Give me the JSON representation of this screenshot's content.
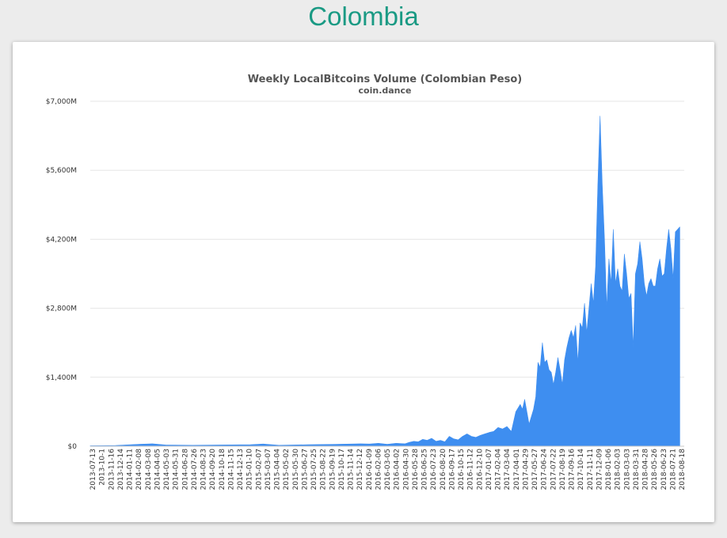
{
  "header": {
    "title": "Colombia"
  },
  "colors": {
    "title": "#1a9a84",
    "area": "#3e8ef0",
    "grid": "#e6e6e6"
  },
  "chart_data": {
    "type": "area",
    "title": "Weekly LocalBitcoins Volume (Colombian Peso)",
    "subtitle": "coin.dance",
    "ylim": [
      0,
      7000
    ],
    "yticks": [
      0,
      1400,
      2800,
      4200,
      5600,
      7000
    ],
    "ytick_labels": [
      "$0",
      "$1,400M",
      "$2,800M",
      "$4,200M",
      "$5,600M",
      "$7,000M"
    ],
    "grid": true,
    "x_start": "2013-07-13",
    "x_end": "2018-09-01",
    "xtick_labels": [
      "2013-07-13",
      "2013-10-1",
      "2013-11-16",
      "2013-12-14",
      "2014-01-11",
      "2014-02-08",
      "2014-03-08",
      "2014-04-05",
      "2014-05-03",
      "2014-05-31",
      "2014-06-28",
      "2014-07-26",
      "2014-08-23",
      "2014-09-20",
      "2014-10-18",
      "2014-11-15",
      "2014-12-13",
      "2015-01-10",
      "2015-02-07",
      "2015-03-07",
      "2015-04-04",
      "2015-05-02",
      "2015-05-30",
      "2015-06-27",
      "2015-07-25",
      "2015-08-22",
      "2015-09-19",
      "2015-10-17",
      "2015-11-14",
      "2015-12-12",
      "2016-01-09",
      "2016-02-06",
      "2016-03-05",
      "2016-04-02",
      "2016-04-30",
      "2016-05-28",
      "2016-06-25",
      "2016-07-23",
      "2016-08-20",
      "2016-09-17",
      "2016-10-15",
      "2016-11-12",
      "2016-12-10",
      "2017-01-07",
      "2017-02-04",
      "2017-03-04",
      "2017-04-01",
      "2017-04-29",
      "2017-05-27",
      "2017-06-24",
      "2017-07-22",
      "2017-08-19",
      "2017-09-16",
      "2017-10-14",
      "2017-11-11",
      "2017-12-09",
      "2018-01-06",
      "2018-02-03",
      "2018-03-03",
      "2018-03-31",
      "2018-04-28",
      "2018-05-26",
      "2018-06-23",
      "2018-07-21",
      "2018-08-18"
    ],
    "series": [
      {
        "points": [
          [
            "2013-07-13",
            10
          ],
          [
            "2013-10-01",
            15
          ],
          [
            "2013-12-14",
            40
          ],
          [
            "2014-01-25",
            50
          ],
          [
            "2014-03-08",
            25
          ],
          [
            "2014-06-01",
            20
          ],
          [
            "2014-09-01",
            25
          ],
          [
            "2014-12-01",
            30
          ],
          [
            "2015-01-10",
            45
          ],
          [
            "2015-03-01",
            20
          ],
          [
            "2015-06-01",
            30
          ],
          [
            "2015-09-01",
            40
          ],
          [
            "2015-11-14",
            50
          ],
          [
            "2015-12-12",
            45
          ],
          [
            "2016-01-09",
            60
          ],
          [
            "2016-02-06",
            40
          ],
          [
            "2016-03-05",
            60
          ],
          [
            "2016-04-02",
            50
          ],
          [
            "2016-04-16",
            80
          ],
          [
            "2016-04-30",
            100
          ],
          [
            "2016-05-14",
            90
          ],
          [
            "2016-05-28",
            140
          ],
          [
            "2016-06-11",
            120
          ],
          [
            "2016-06-25",
            160
          ],
          [
            "2016-07-09",
            100
          ],
          [
            "2016-07-23",
            120
          ],
          [
            "2016-08-06",
            90
          ],
          [
            "2016-08-20",
            200
          ],
          [
            "2016-09-03",
            150
          ],
          [
            "2016-09-17",
            130
          ],
          [
            "2016-10-01",
            200
          ],
          [
            "2016-10-15",
            250
          ],
          [
            "2016-10-29",
            200
          ],
          [
            "2016-11-12",
            180
          ],
          [
            "2016-11-26",
            220
          ],
          [
            "2016-12-10",
            250
          ],
          [
            "2016-12-24",
            280
          ],
          [
            "2017-01-07",
            300
          ],
          [
            "2017-01-21",
            380
          ],
          [
            "2017-02-04",
            350
          ],
          [
            "2017-02-18",
            400
          ],
          [
            "2017-03-04",
            300
          ],
          [
            "2017-03-18",
            700
          ],
          [
            "2017-04-01",
            850
          ],
          [
            "2017-04-08",
            750
          ],
          [
            "2017-04-15",
            950
          ],
          [
            "2017-04-29",
            450
          ],
          [
            "2017-05-13",
            750
          ],
          [
            "2017-05-20",
            1000
          ],
          [
            "2017-05-27",
            1700
          ],
          [
            "2017-06-03",
            1600
          ],
          [
            "2017-06-10",
            2100
          ],
          [
            "2017-06-17",
            1700
          ],
          [
            "2017-06-24",
            1750
          ],
          [
            "2017-07-01",
            1550
          ],
          [
            "2017-07-08",
            1500
          ],
          [
            "2017-07-15",
            1250
          ],
          [
            "2017-07-22",
            1500
          ],
          [
            "2017-07-29",
            1800
          ],
          [
            "2017-08-05",
            1550
          ],
          [
            "2017-08-12",
            1250
          ],
          [
            "2017-08-19",
            1750
          ],
          [
            "2017-08-26",
            2000
          ],
          [
            "2017-09-02",
            2200
          ],
          [
            "2017-09-09",
            2350
          ],
          [
            "2017-09-16",
            2200
          ],
          [
            "2017-09-23",
            2450
          ],
          [
            "2017-09-30",
            1700
          ],
          [
            "2017-10-07",
            2500
          ],
          [
            "2017-10-14",
            2400
          ],
          [
            "2017-10-21",
            2900
          ],
          [
            "2017-10-28",
            2300
          ],
          [
            "2017-11-04",
            2800
          ],
          [
            "2017-11-11",
            3300
          ],
          [
            "2017-11-18",
            2900
          ],
          [
            "2017-11-25",
            3650
          ],
          [
            "2017-12-02",
            5300
          ],
          [
            "2017-12-09",
            6700
          ],
          [
            "2017-12-16",
            5300
          ],
          [
            "2017-12-23",
            4200
          ],
          [
            "2017-12-30",
            2800
          ],
          [
            "2018-01-06",
            3800
          ],
          [
            "2018-01-13",
            3300
          ],
          [
            "2018-01-20",
            4400
          ],
          [
            "2018-01-27",
            3300
          ],
          [
            "2018-02-03",
            3600
          ],
          [
            "2018-02-10",
            3250
          ],
          [
            "2018-02-17",
            3150
          ],
          [
            "2018-02-24",
            3900
          ],
          [
            "2018-03-03",
            3500
          ],
          [
            "2018-03-10",
            3000
          ],
          [
            "2018-03-17",
            3100
          ],
          [
            "2018-03-24",
            2000
          ],
          [
            "2018-03-31",
            3500
          ],
          [
            "2018-04-07",
            3700
          ],
          [
            "2018-04-14",
            4150
          ],
          [
            "2018-04-21",
            3800
          ],
          [
            "2018-04-28",
            3300
          ],
          [
            "2018-05-05",
            3050
          ],
          [
            "2018-05-12",
            3300
          ],
          [
            "2018-05-19",
            3400
          ],
          [
            "2018-05-26",
            3250
          ],
          [
            "2018-06-02",
            3250
          ],
          [
            "2018-06-09",
            3600
          ],
          [
            "2018-06-16",
            3800
          ],
          [
            "2018-06-23",
            3450
          ],
          [
            "2018-06-30",
            3500
          ],
          [
            "2018-07-07",
            4000
          ],
          [
            "2018-07-14",
            4400
          ],
          [
            "2018-07-21",
            4000
          ],
          [
            "2018-07-28",
            3400
          ],
          [
            "2018-08-04",
            4350
          ],
          [
            "2018-08-11",
            4400
          ],
          [
            "2018-08-18",
            4450
          ]
        ]
      }
    ]
  }
}
